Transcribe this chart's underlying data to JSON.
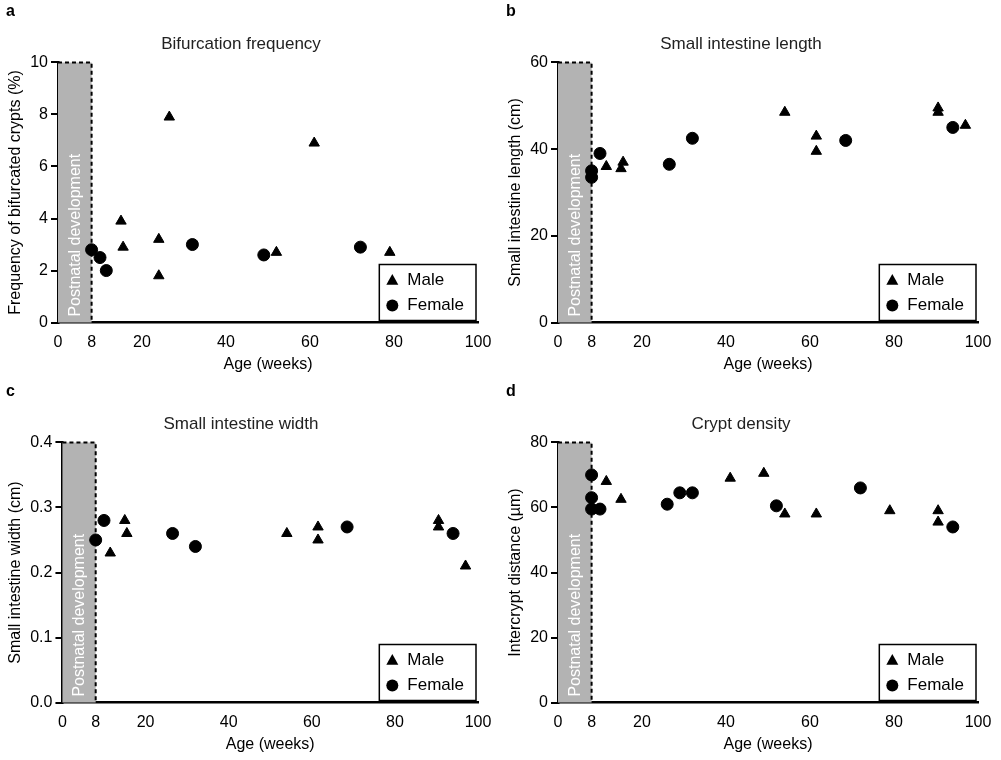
{
  "chart_data": [
    {
      "type": "scatter",
      "title": "Bifurcation frequency",
      "xlabel": "Age (weeks)",
      "ylabel": "Frequency of bifurcated crypts (%)",
      "annotations": [
        "a"
      ],
      "xlim": [
        0,
        100
      ],
      "xticks": [
        0,
        8,
        20,
        40,
        60,
        80,
        100
      ],
      "ylim": [
        0,
        10
      ],
      "yticks": [
        0,
        2,
        4,
        6,
        8,
        10
      ],
      "grid": false,
      "legend": "bottom right",
      "bands": [
        {
          "axis": "x",
          "from": 0,
          "to": 8,
          "label": "Postnatal development",
          "color": "#b3b3b3"
        }
      ],
      "series": [
        {
          "name": "Male",
          "color": "#000000",
          "marker": "triangle",
          "x": [
            15,
            15.5,
            24,
            24,
            26.5,
            52,
            61,
            79
          ],
          "values": [
            3.9,
            2.9,
            3.2,
            1.8,
            7.9,
            2.7,
            6.9,
            2.7
          ]
        },
        {
          "name": "Female",
          "color": "#000000",
          "marker": "circle",
          "x": [
            8,
            10,
            11.5,
            32,
            49,
            72
          ],
          "values": [
            2.8,
            2.5,
            2,
            3,
            2.6,
            2.9
          ]
        }
      ]
    },
    {
      "type": "scatter",
      "title": "Small intestine length",
      "xlabel": "Age (weeks)",
      "ylabel": "Small intestine length (cm)",
      "annotations": [
        "b"
      ],
      "xlim": [
        0,
        100
      ],
      "xticks": [
        0,
        8,
        20,
        40,
        60,
        80,
        100
      ],
      "ylim": [
        0,
        60
      ],
      "yticks": [
        0,
        20,
        40,
        60
      ],
      "grid": false,
      "legend": "bottom right",
      "bands": [
        {
          "axis": "x",
          "from": 0,
          "to": 8,
          "label": "Postnatal development",
          "color": "#b3b3b3"
        }
      ],
      "series": [
        {
          "name": "Male",
          "color": "#000000",
          "marker": "triangle",
          "x": [
            11.5,
            15,
            15.5,
            54,
            61.5,
            61.5,
            90.5,
            90.5,
            97
          ],
          "values": [
            36,
            35.5,
            37,
            48.5,
            43,
            39.5,
            49.5,
            48.5,
            45.5
          ]
        },
        {
          "name": "Female",
          "color": "#000000",
          "marker": "circle",
          "x": [
            8,
            8,
            10,
            26.5,
            32,
            68.5,
            94
          ],
          "values": [
            35,
            33.5,
            39,
            36.5,
            42.5,
            42,
            45
          ]
        }
      ]
    },
    {
      "type": "scatter",
      "title": "Small intestine width",
      "xlabel": "Age (weeks)",
      "ylabel": "Small intestine width (cm)",
      "annotations": [
        "c"
      ],
      "xlim": [
        0,
        100
      ],
      "xticks": [
        0,
        8,
        20,
        40,
        60,
        80,
        100
      ],
      "ylim": [
        0,
        0.4
      ],
      "yticks": [
        {
          "value": 0,
          "label": "0.0"
        },
        0.1,
        0.2,
        0.3,
        0.4
      ],
      "grid": false,
      "legend": "bottom right",
      "bands": [
        {
          "axis": "x",
          "from": 0,
          "to": 8,
          "label": "Postnatal development",
          "color": "#b3b3b3"
        }
      ],
      "series": [
        {
          "name": "Male",
          "color": "#000000",
          "marker": "triangle",
          "x": [
            11.5,
            15,
            15.5,
            54,
            61.5,
            61.5,
            90.5,
            90.5,
            97
          ],
          "values": [
            0.23,
            0.28,
            0.26,
            0.26,
            0.27,
            0.25,
            0.28,
            0.27,
            0.21
          ]
        },
        {
          "name": "Female",
          "color": "#000000",
          "marker": "circle",
          "x": [
            8,
            10,
            26.5,
            32,
            68.5,
            94
          ],
          "values": [
            0.25,
            0.28,
            0.26,
            0.24,
            0.27,
            0.26
          ]
        }
      ]
    },
    {
      "type": "scatter",
      "title": "Crypt density",
      "xlabel": "Age (weeks)",
      "ylabel": "Intercrypt distance (µm)",
      "annotations": [
        "d"
      ],
      "xlim": [
        0,
        100
      ],
      "xticks": [
        0,
        8,
        20,
        40,
        60,
        80,
        100
      ],
      "ylim": [
        0,
        80
      ],
      "yticks": [
        0,
        20,
        40,
        60,
        80
      ],
      "grid": false,
      "legend": "bottom right",
      "bands": [
        {
          "axis": "x",
          "from": 0,
          "to": 8,
          "label": "Postnatal development",
          "color": "#b3b3b3"
        }
      ],
      "series": [
        {
          "name": "Male",
          "color": "#000000",
          "marker": "triangle",
          "x": [
            11.5,
            15,
            41,
            49,
            54,
            61.5,
            79,
            90.5,
            90.5
          ],
          "values": [
            68,
            62.5,
            69,
            70.5,
            58,
            58,
            59,
            59,
            55.5
          ]
        },
        {
          "name": "Female",
          "color": "#000000",
          "marker": "circle",
          "x": [
            8,
            8,
            8,
            10,
            26,
            29,
            32,
            52,
            72,
            94
          ],
          "values": [
            70,
            63,
            59.5,
            59.5,
            61,
            64.5,
            64.5,
            60.5,
            66,
            54
          ]
        }
      ]
    }
  ]
}
